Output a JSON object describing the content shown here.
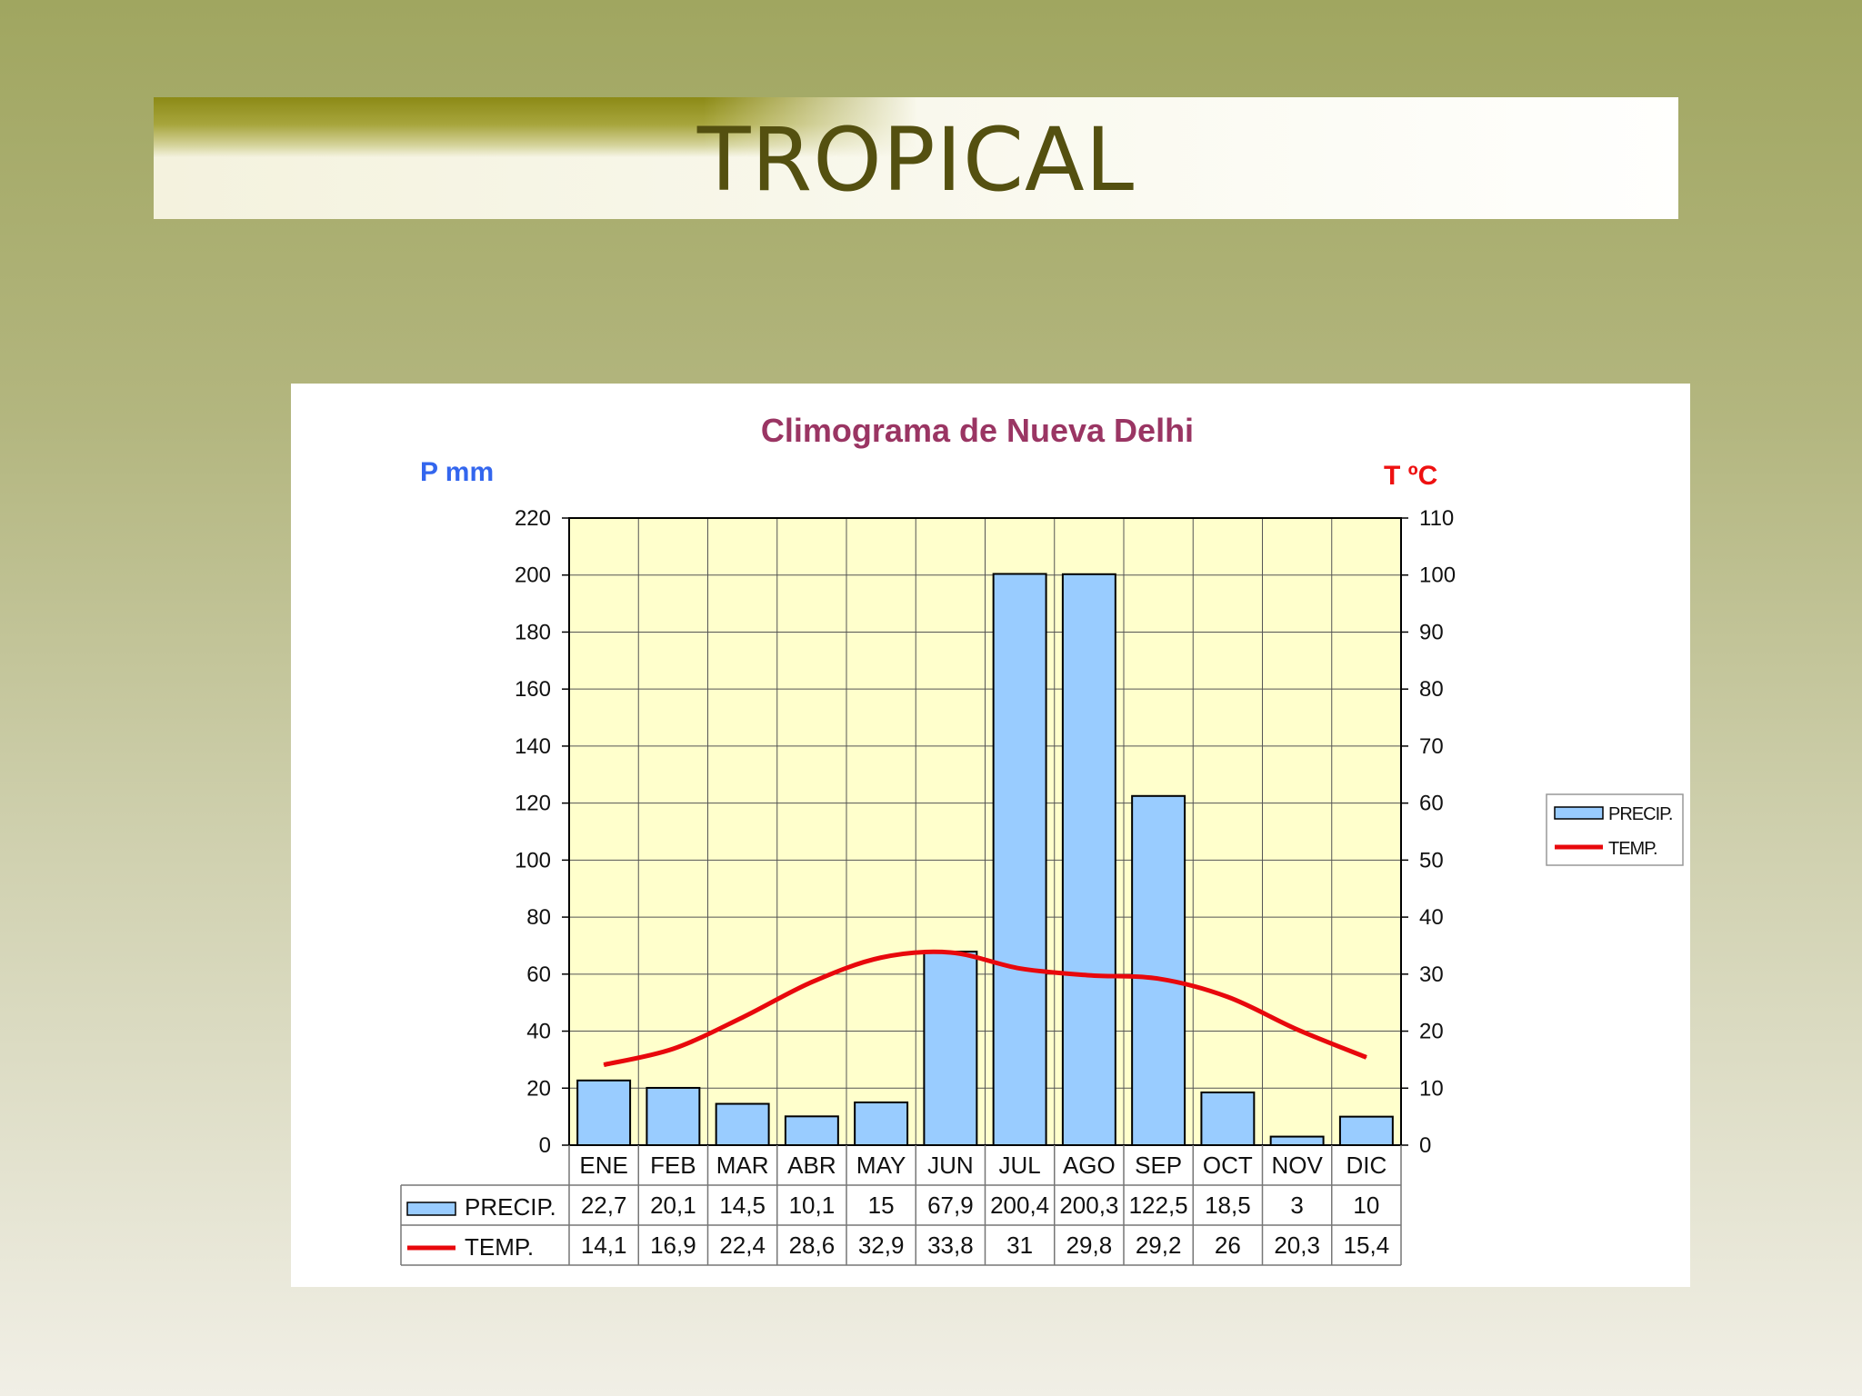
{
  "slide": {
    "title": "TROPICAL"
  },
  "colors": {
    "bar_fill": "#99ccff",
    "line": "#e8080c",
    "plot_bg": "#ffffcc",
    "chart_title": "#9a3563",
    "left_axis_title": "#3366ee",
    "right_axis_title": "#ee1111"
  },
  "chart_data": {
    "type": "bar",
    "title": "Climograma de Nueva Delhi",
    "ylabel": "P mm",
    "y2label": "T ºC",
    "ylim": [
      0,
      220
    ],
    "y2lim": [
      0,
      110
    ],
    "yticks": [
      0,
      20,
      40,
      60,
      80,
      100,
      120,
      140,
      160,
      180,
      200,
      220
    ],
    "y2ticks": [
      0,
      10,
      20,
      30,
      40,
      50,
      60,
      70,
      80,
      90,
      100,
      110
    ],
    "categories": [
      "ENE",
      "FEB",
      "MAR",
      "ABR",
      "MAY",
      "JUN",
      "JUL",
      "AGO",
      "SEP",
      "OCT",
      "NOV",
      "DIC"
    ],
    "series": [
      {
        "name": "PRECIP.",
        "type": "bar",
        "axis": "left",
        "values": [
          22.7,
          20.1,
          14.5,
          10.1,
          15,
          67.9,
          200.4,
          200.3,
          122.5,
          18.5,
          3,
          10
        ],
        "labels": [
          "22,7",
          "20,1",
          "14,5",
          "10,1",
          "15",
          "67,9",
          "200,4",
          "200,3",
          "122,5",
          "18,5",
          "3",
          "10"
        ]
      },
      {
        "name": "TEMP.",
        "type": "line",
        "axis": "right",
        "values": [
          14.1,
          16.9,
          22.4,
          28.6,
          32.9,
          33.8,
          31,
          29.8,
          29.2,
          26,
          20.3,
          15.4
        ],
        "labels": [
          "14,1",
          "16,9",
          "22,4",
          "28,6",
          "32,9",
          "33,8",
          "31",
          "29,8",
          "29,2",
          "26",
          "20,3",
          "15,4"
        ]
      }
    ],
    "legend": {
      "position": "right",
      "items": [
        "PRECIP.",
        "TEMP."
      ]
    },
    "data_table": {
      "visible": true,
      "row_labels": [
        "PRECIP.",
        "TEMP."
      ]
    },
    "grid": true
  }
}
